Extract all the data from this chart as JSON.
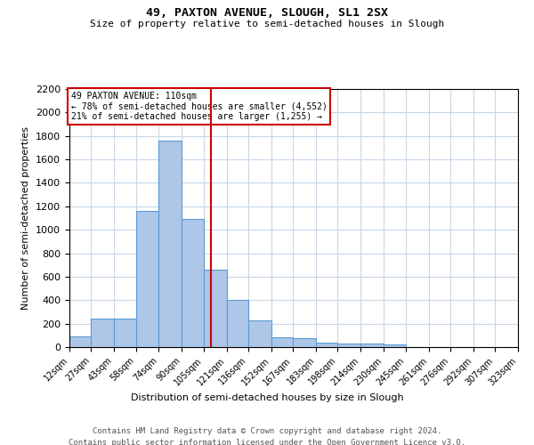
{
  "title": "49, PAXTON AVENUE, SLOUGH, SL1 2SX",
  "subtitle": "Size of property relative to semi-detached houses in Slough",
  "xlabel": "Distribution of semi-detached houses by size in Slough",
  "ylabel": "Number of semi-detached properties",
  "footer_line1": "Contains HM Land Registry data © Crown copyright and database right 2024.",
  "footer_line2": "Contains public sector information licensed under the Open Government Licence v3.0.",
  "annotation_line1": "49 PAXTON AVENUE: 110sqm",
  "annotation_line2": "← 78% of semi-detached houses are smaller (4,552)",
  "annotation_line3": "21% of semi-detached houses are larger (1,255) →",
  "property_line_x": 110,
  "bar_edges": [
    12,
    27,
    43,
    58,
    74,
    90,
    105,
    121,
    136,
    152,
    167,
    183,
    198,
    214,
    230,
    245,
    261,
    276,
    292,
    307,
    323
  ],
  "bar_heights": [
    90,
    240,
    240,
    1160,
    1760,
    1090,
    660,
    400,
    230,
    80,
    75,
    40,
    30,
    27,
    20,
    0,
    0,
    0,
    0,
    0
  ],
  "bar_color": "#aec6e8",
  "bar_edge_color": "#5b9bd5",
  "property_line_color": "#cc0000",
  "annotation_box_edge_color": "#cc0000",
  "background_color": "#ffffff",
  "grid_color": "#c8d8e8",
  "ylim": [
    0,
    2200
  ],
  "yticks": [
    0,
    200,
    400,
    600,
    800,
    1000,
    1200,
    1400,
    1600,
    1800,
    2000,
    2200
  ],
  "tick_labels": [
    "12sqm",
    "27sqm",
    "43sqm",
    "58sqm",
    "74sqm",
    "90sqm",
    "105sqm",
    "121sqm",
    "136sqm",
    "152sqm",
    "167sqm",
    "183sqm",
    "198sqm",
    "214sqm",
    "230sqm",
    "245sqm",
    "261sqm",
    "276sqm",
    "292sqm",
    "307sqm",
    "323sqm"
  ]
}
